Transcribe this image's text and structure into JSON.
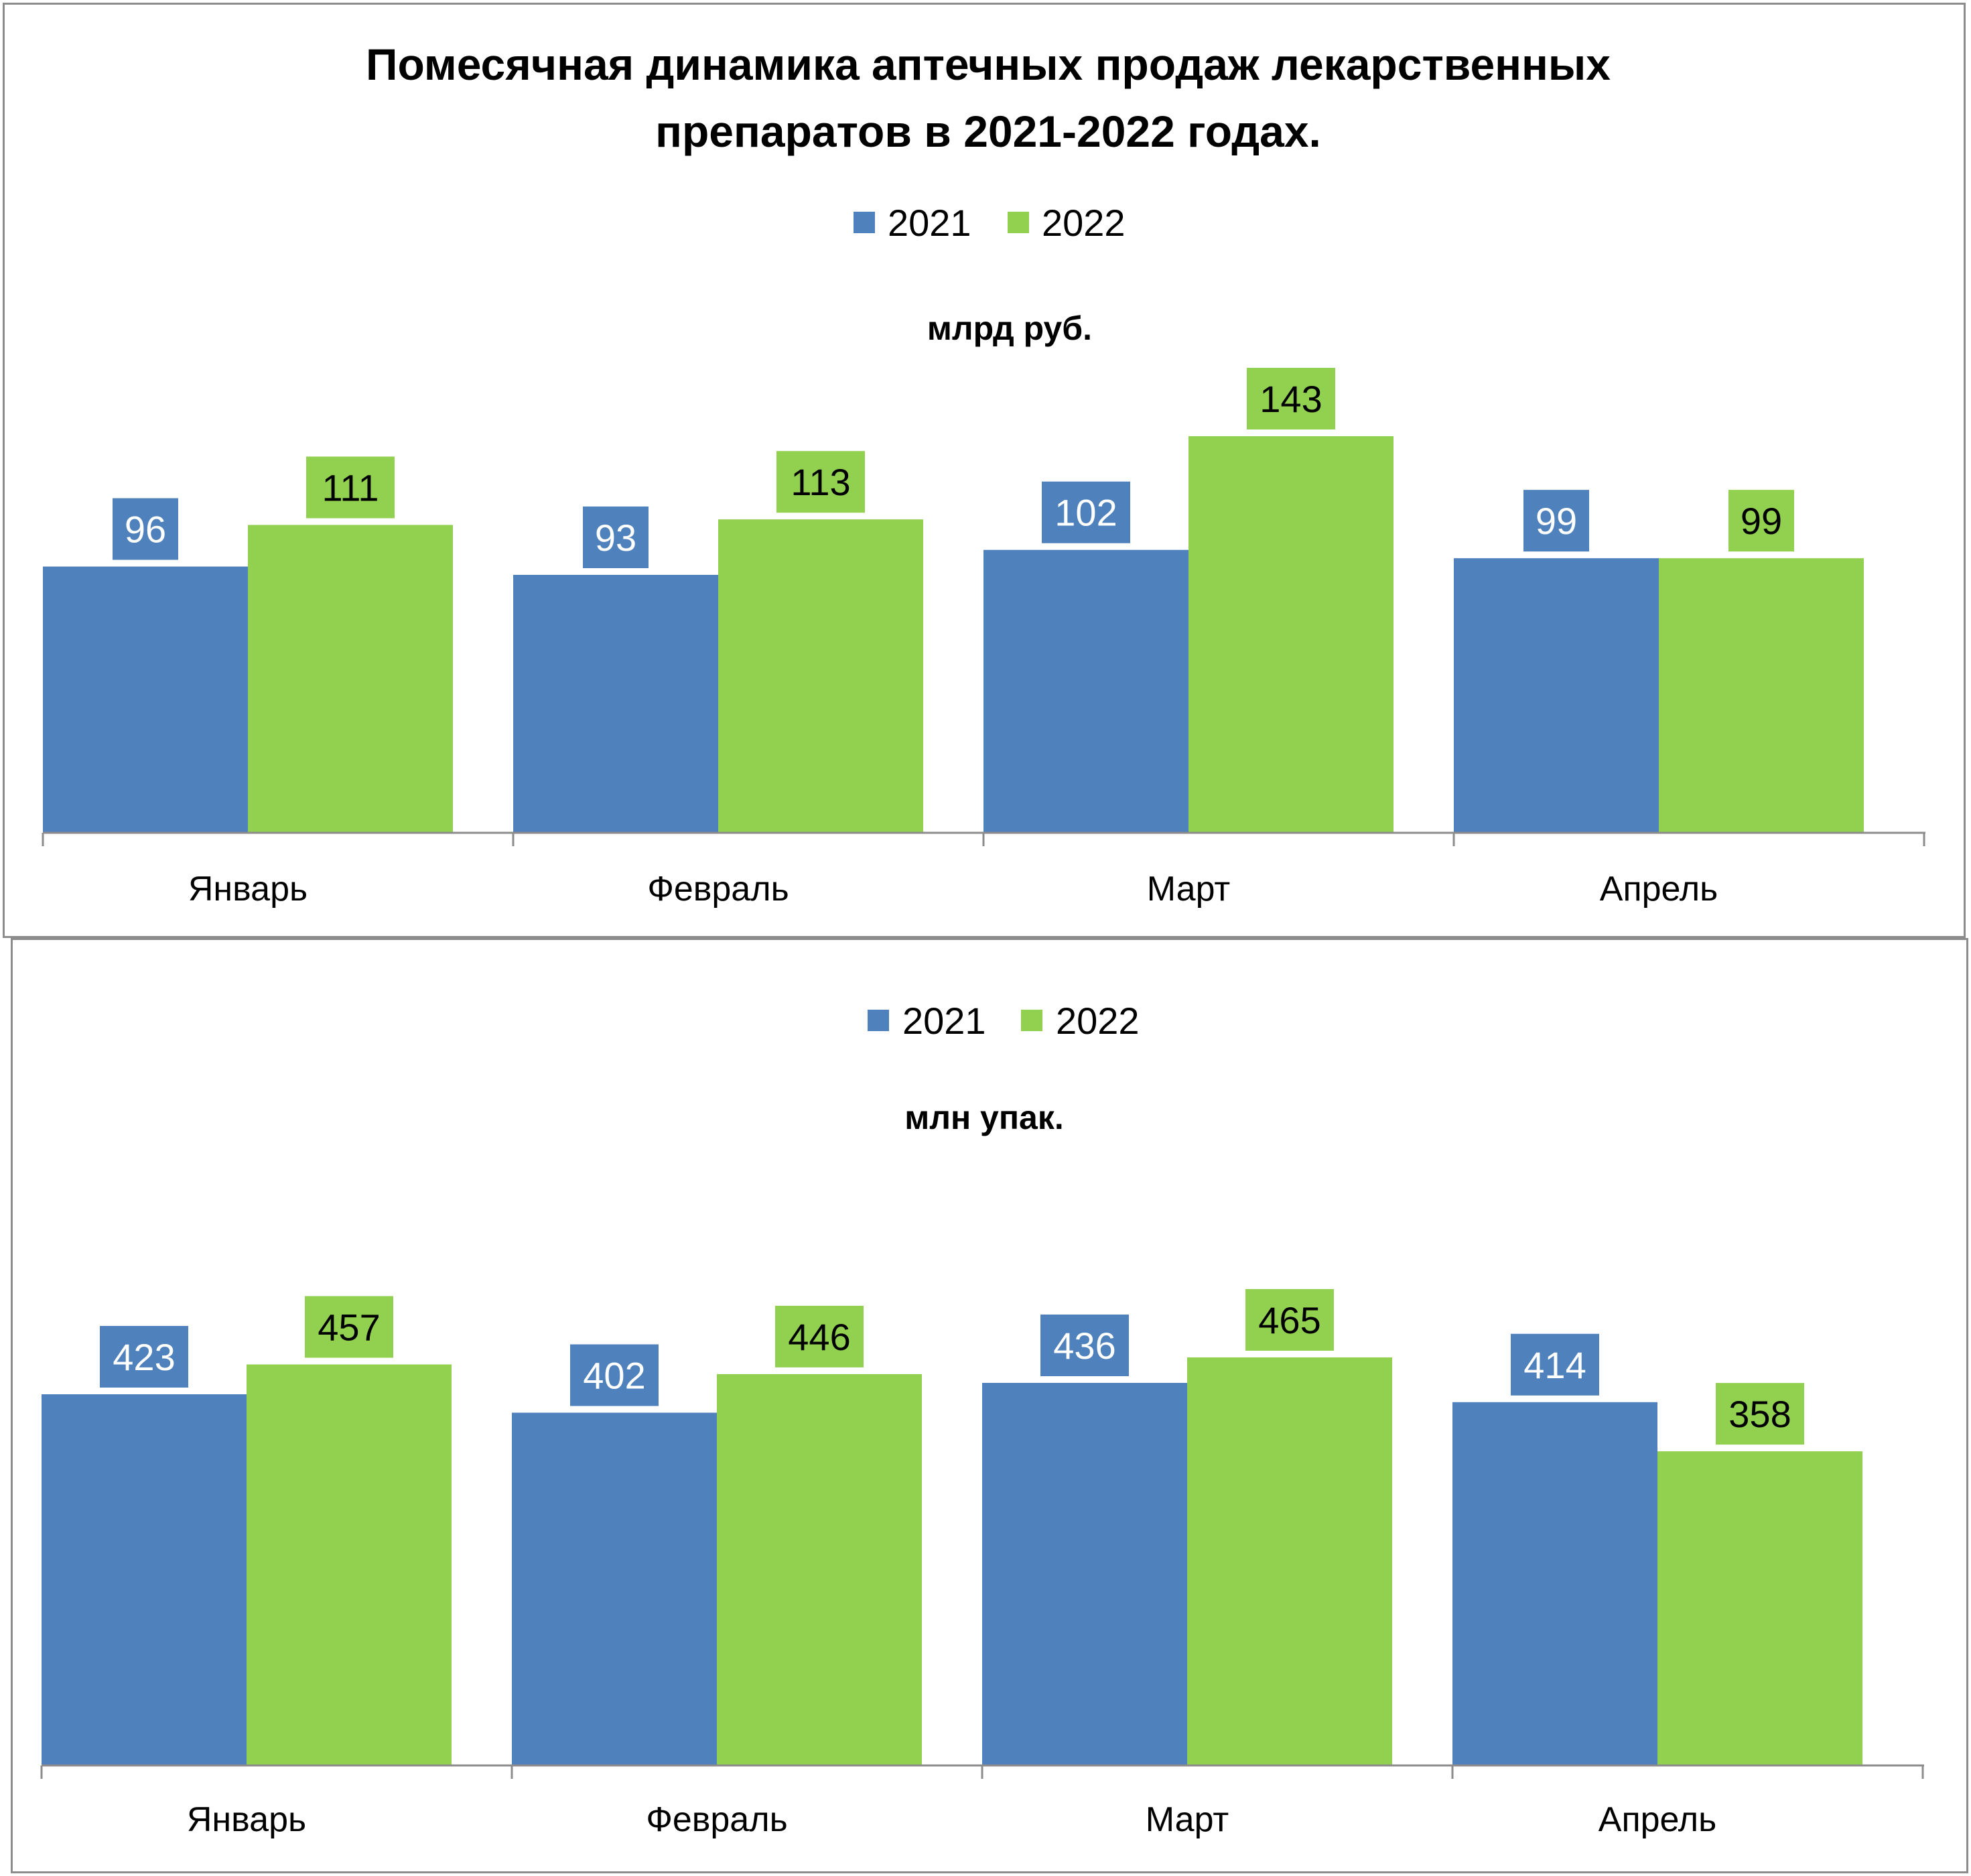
{
  "colors": {
    "series_2021": "#4f81bd",
    "series_2022": "#92d050",
    "axis": "#8c8c8c"
  },
  "chart_data": [
    {
      "type": "bar",
      "title_line1": "Помесячная динамика аптечных продаж лекарственных",
      "title_line2": "препаратов в 2021-2022 годах.",
      "subtitle": "млрд руб.",
      "categories": [
        "Январь",
        "Февраль",
        "Март",
        "Апрель"
      ],
      "series": [
        {
          "name": "2021",
          "values": [
            96,
            93,
            102,
            99
          ]
        },
        {
          "name": "2022",
          "values": [
            111,
            113,
            143,
            99
          ]
        }
      ],
      "ylim": [
        0,
        160
      ],
      "legend": "top",
      "grid": false,
      "data_labels": true
    },
    {
      "type": "bar",
      "subtitle": "млн упак.",
      "categories": [
        "Январь",
        "Февраль",
        "Март",
        "Апрель"
      ],
      "series": [
        {
          "name": "2021",
          "values": [
            423,
            402,
            436,
            414
          ]
        },
        {
          "name": "2022",
          "values": [
            457,
            446,
            465,
            358
          ]
        }
      ],
      "ylim": [
        0,
        580
      ],
      "legend": "top",
      "grid": false,
      "data_labels": true
    }
  ]
}
